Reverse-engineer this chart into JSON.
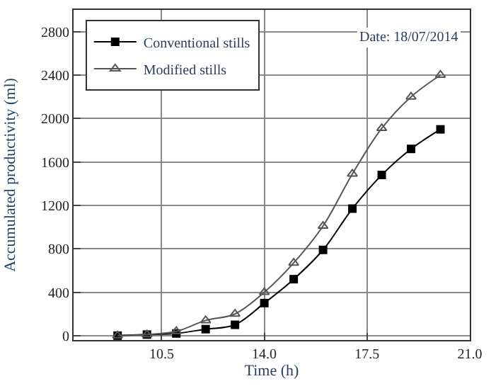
{
  "chart_data": {
    "type": "line",
    "xlabel": "Time (h)",
    "ylabel": "Accumulated productivity (ml)",
    "x": [
      9,
      10,
      11,
      12,
      13,
      14,
      15,
      16,
      17,
      18,
      19,
      20
    ],
    "series": [
      {
        "name": "Conventional stills",
        "color": "#000000",
        "marker": "square",
        "values": [
          0,
          10,
          20,
          60,
          100,
          300,
          520,
          790,
          1170,
          1480,
          1720,
          1900
        ]
      },
      {
        "name": "Modified stills",
        "color": "#555555",
        "marker": "triangle",
        "values": [
          0,
          10,
          40,
          140,
          200,
          400,
          670,
          1010,
          1490,
          1910,
          2200,
          2400
        ]
      }
    ],
    "xlim": [
      7.5,
      21
    ],
    "xticks": [
      10.5,
      {
        "value": 14,
        "label": "14.0"
      },
      17.5,
      {
        "value": 21,
        "label": "21.0"
      }
    ],
    "ylim": [
      -40,
      3000
    ],
    "yticks": [
      0,
      400,
      800,
      1200,
      1600,
      2000,
      2400,
      2800
    ],
    "grid": true,
    "legend": "top left",
    "line_style": "solid",
    "annotations": [
      "Date: 18/07/2014"
    ]
  }
}
